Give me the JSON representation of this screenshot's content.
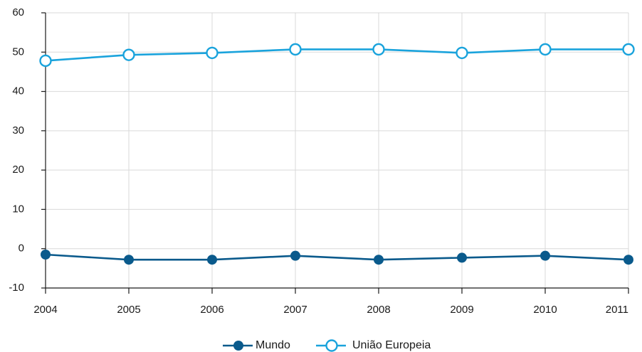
{
  "chart_data": {
    "type": "line",
    "title": "",
    "xlabel": "",
    "ylabel": "",
    "x": [
      "2004",
      "2005",
      "2006",
      "2007",
      "2008",
      "2009",
      "2010",
      "2011"
    ],
    "ylim": [
      -10,
      60
    ],
    "yticks": [
      "-10",
      "0",
      "10",
      "20",
      "30",
      "40",
      "50",
      "60"
    ],
    "grid": true,
    "legend_position": "bottom-center",
    "series": [
      {
        "name": "Mundo",
        "color": "#0a5a8c",
        "marker": "filled-circle",
        "values": [
          -1.5,
          -2.8,
          -2.8,
          -1.8,
          -2.8,
          -2.3,
          -1.8,
          -2.8
        ]
      },
      {
        "name": "União Europeia",
        "color": "#1aa3dc",
        "marker": "hollow-circle",
        "values": [
          47.8,
          49.3,
          49.8,
          50.7,
          50.7,
          49.8,
          50.7,
          50.7
        ]
      }
    ]
  }
}
